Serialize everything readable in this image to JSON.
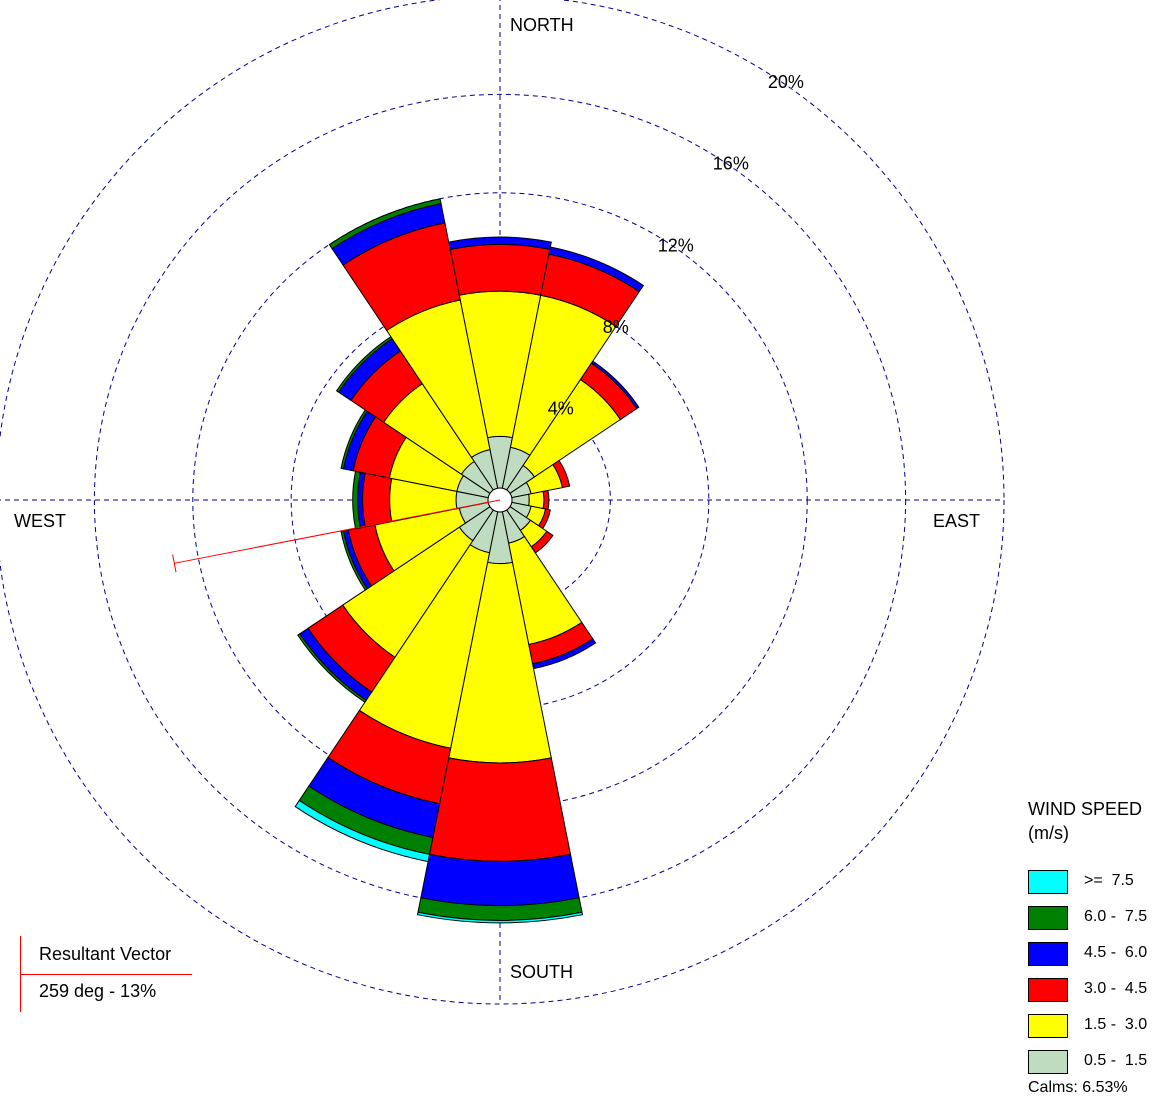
{
  "chart_data": {
    "type": "windrose",
    "directions": [
      "N",
      "NNE",
      "NE",
      "ENE",
      "E",
      "ESE",
      "SE",
      "SSE",
      "S",
      "SSW",
      "SW",
      "WSW",
      "W",
      "WNW",
      "NW",
      "NNW"
    ],
    "direction_angles_deg": [
      0,
      22.5,
      45,
      67.5,
      90,
      112.5,
      135,
      157.5,
      180,
      202.5,
      225,
      247.5,
      270,
      292.5,
      315,
      337.5
    ],
    "compass_labels": {
      "north": "NORTH",
      "east": "EAST",
      "south": "SOUTH",
      "west": "WEST"
    },
    "rings": [
      4,
      8,
      12,
      16,
      20
    ],
    "ring_labels": [
      "4%",
      "8%",
      "12%",
      "16%",
      "20%"
    ],
    "radial_max": 20,
    "series": [
      {
        "name": "0.5 - 1.5",
        "color": "#c0dcc0",
        "values": [
          2.1,
          1.7,
          1.2,
          0.8,
          0.7,
          0.8,
          1.0,
          1.3,
          2.1,
          1.7,
          1.5,
          1.2,
          1.3,
          1.3,
          1.4,
          1.6
        ]
      },
      {
        "name": "1.5 - 3.0",
        "color": "#ffff00",
        "values": [
          5.9,
          6.3,
          4.2,
          1.3,
          0.6,
          0.6,
          0.8,
          4.2,
          8.1,
          8.1,
          5.7,
          3.5,
          2.7,
          2.8,
          3.8,
          6.2
        ]
      },
      {
        "name": "3.0 - 4.5",
        "color": "#ff0000",
        "values": [
          1.9,
          1.7,
          0.8,
          0.3,
          0.2,
          0.2,
          0.3,
          0.8,
          4.0,
          2.3,
          1.7,
          1.1,
          1.1,
          1.5,
          1.6,
          3.2
        ]
      },
      {
        "name": "4.5 - 6.0",
        "color": "#0000ff",
        "values": [
          0.3,
          0.3,
          0.1,
          0.0,
          0.0,
          0.0,
          0.0,
          0.2,
          1.8,
          1.4,
          0.4,
          0.2,
          0.2,
          0.4,
          0.6,
          0.8
        ]
      },
      {
        "name": "6.0 - 7.5",
        "color": "#008000",
        "values": [
          0.0,
          0.0,
          0.0,
          0.0,
          0.0,
          0.0,
          0.0,
          0.0,
          0.6,
          0.7,
          0.1,
          0.1,
          0.2,
          0.1,
          0.1,
          0.2
        ]
      },
      {
        "name": ">= 7.5",
        "color": "#00ffff",
        "values": [
          0.0,
          0.0,
          0.0,
          0.0,
          0.0,
          0.0,
          0.0,
          0.0,
          0.1,
          0.3,
          0.0,
          0.0,
          0.0,
          0.0,
          0.0,
          0.0
        ]
      }
    ],
    "legend": {
      "title_line1": "WIND SPEED",
      "title_line2": "(m/s)",
      "items": [
        {
          "label": ">=  7.5",
          "color": "#00ffff"
        },
        {
          "label": "6.0 -  7.5",
          "color": "#008000"
        },
        {
          "label": "4.5 -  6.0",
          "color": "#0000ff"
        },
        {
          "label": "3.0 -  4.5",
          "color": "#ff0000"
        },
        {
          "label": "1.5 -  3.0",
          "color": "#ffff00"
        },
        {
          "label": "0.5 -  1.5",
          "color": "#c0dcc0"
        }
      ],
      "calms": "Calms: 6.53%"
    },
    "resultant_vector": {
      "title": "Resultant Vector",
      "value_text": "259 deg - 13%",
      "direction_deg": 259,
      "percent": 13,
      "color": "#ff0000"
    },
    "grid_color": "#00008b"
  }
}
